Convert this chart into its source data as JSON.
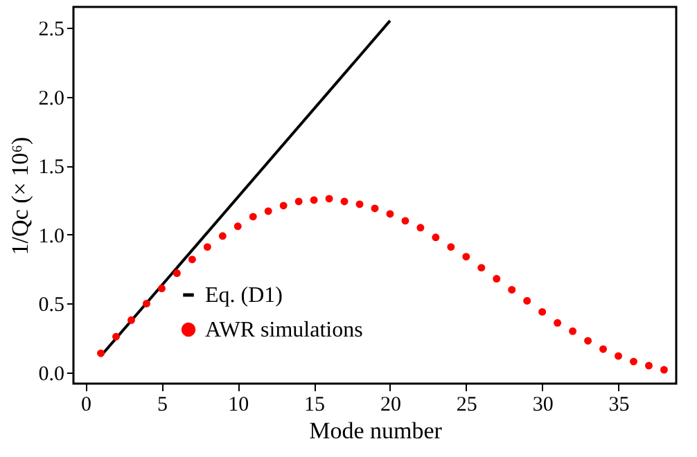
{
  "chart_data": {
    "type": "scatter",
    "xlabel": "Mode number",
    "ylabel": "1/Qc (× 10⁶)",
    "xlim": [
      -0.8,
      38.8
    ],
    "xticks": [
      0,
      5,
      10,
      15,
      20,
      25,
      30,
      35
    ],
    "ylim": [
      -0.08,
      2.65
    ],
    "yticks": [
      {
        "value": 0,
        "label": "0.0"
      },
      0.5,
      {
        "value": 1,
        "label": "1.0"
      },
      1.5,
      {
        "value": 2,
        "label": "2.0"
      },
      2.5
    ],
    "legend": "bottom",
    "grid": false,
    "series": [
      {
        "name": "Eq. (D1)",
        "type": "line",
        "color": "#000000",
        "x": [
          1,
          20
        ],
        "values": [
          0.12,
          2.55
        ]
      },
      {
        "name": "AWR simulations",
        "color": "#ff0000",
        "marker": "circle",
        "x": [
          1,
          2,
          3,
          4,
          5,
          6,
          7,
          8,
          9,
          10,
          11,
          12,
          13,
          14,
          15,
          16,
          17,
          18,
          19,
          20,
          21,
          22,
          23,
          24,
          25,
          26,
          27,
          28,
          29,
          30,
          31,
          32,
          33,
          34,
          35,
          36,
          37,
          38
        ],
        "values": [
          0.14,
          0.26,
          0.38,
          0.5,
          0.61,
          0.72,
          0.82,
          0.91,
          0.99,
          1.06,
          1.13,
          1.17,
          1.21,
          1.24,
          1.25,
          1.26,
          1.24,
          1.22,
          1.19,
          1.15,
          1.1,
          1.05,
          0.98,
          0.91,
          0.84,
          0.76,
          0.68,
          0.6,
          0.52,
          0.44,
          0.36,
          0.3,
          0.23,
          0.17,
          0.12,
          0.08,
          0.05,
          0.02
        ]
      }
    ]
  }
}
